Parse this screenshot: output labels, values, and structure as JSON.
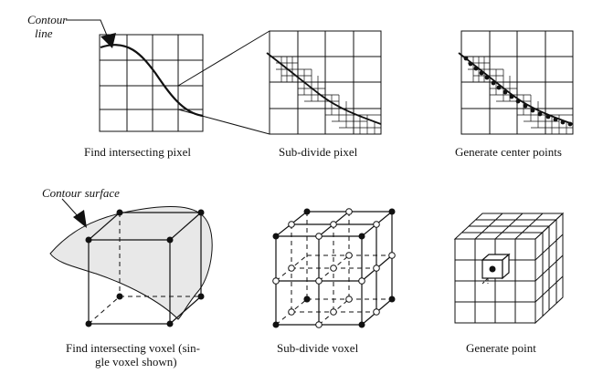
{
  "annotations": {
    "contour_line": [
      "Contour",
      "line"
    ],
    "contour_surface": "Contour surface"
  },
  "panels": [
    {
      "id": "find-pixel",
      "caption": [
        "Find intersecting pixel"
      ]
    },
    {
      "id": "subdivide-pixel",
      "caption": [
        "Sub-divide pixel"
      ]
    },
    {
      "id": "center-points",
      "caption": [
        "Generate center points"
      ]
    },
    {
      "id": "find-voxel",
      "caption": [
        "Find intersecting voxel (sin-",
        "gle voxel shown)"
      ]
    },
    {
      "id": "subdivide-voxel",
      "caption": [
        "Sub-divide voxel"
      ]
    },
    {
      "id": "generate-point",
      "caption": [
        "Generate point"
      ]
    }
  ],
  "colors": {
    "ink": "#111111",
    "surface_fill": "#e8e8e8",
    "background": "#ffffff"
  }
}
